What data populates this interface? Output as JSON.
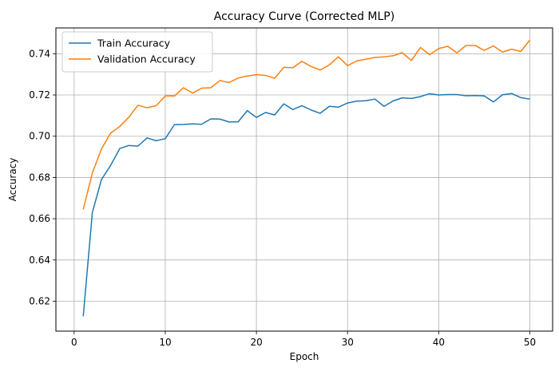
{
  "chart_data": {
    "type": "line",
    "title": "Accuracy Curve (Corrected MLP)",
    "xlabel": "Epoch",
    "ylabel": "Accuracy",
    "xlim": [
      -2.0,
      52.5
    ],
    "ylim": [
      0.6055,
      0.7525
    ],
    "xticks": [
      0,
      10,
      20,
      30,
      40,
      50
    ],
    "yticks": [
      0.62,
      0.64,
      0.66,
      0.68,
      0.7,
      0.72,
      0.74
    ],
    "grid": true,
    "legend_position": "top-left",
    "x": [
      1,
      2,
      3,
      4,
      5,
      6,
      7,
      8,
      9,
      10,
      11,
      12,
      13,
      14,
      15,
      16,
      17,
      18,
      19,
      20,
      21,
      22,
      23,
      24,
      25,
      26,
      27,
      28,
      29,
      30,
      31,
      32,
      33,
      34,
      35,
      36,
      37,
      38,
      39,
      40,
      41,
      42,
      43,
      44,
      45,
      46,
      47,
      48,
      49,
      50
    ],
    "series": [
      {
        "name": "Train Accuracy",
        "color": "#1f77b4",
        "values": [
          0.6127,
          0.663,
          0.679,
          0.6858,
          0.694,
          0.6955,
          0.6952,
          0.6992,
          0.6978,
          0.6988,
          0.7056,
          0.7057,
          0.706,
          0.7058,
          0.7084,
          0.7083,
          0.7069,
          0.707,
          0.7124,
          0.7091,
          0.7115,
          0.7103,
          0.7157,
          0.7129,
          0.7148,
          0.7127,
          0.7111,
          0.7145,
          0.7141,
          0.7161,
          0.717,
          0.7172,
          0.718,
          0.7145,
          0.7171,
          0.7186,
          0.7183,
          0.7192,
          0.7206,
          0.72,
          0.7202,
          0.7202,
          0.7196,
          0.7197,
          0.7195,
          0.7166,
          0.7201,
          0.7207,
          0.7187,
          0.718
        ]
      },
      {
        "name": "Validation Accuracy",
        "color": "#ff7f0e",
        "values": [
          0.6645,
          0.6822,
          0.6938,
          0.7015,
          0.7047,
          0.7092,
          0.715,
          0.7138,
          0.7148,
          0.7195,
          0.7195,
          0.7235,
          0.7209,
          0.7233,
          0.7235,
          0.727,
          0.726,
          0.7282,
          0.7292,
          0.7298,
          0.7295,
          0.7281,
          0.7334,
          0.7332,
          0.7363,
          0.7338,
          0.7321,
          0.7346,
          0.7385,
          0.7342,
          0.7365,
          0.7373,
          0.7382,
          0.7385,
          0.739,
          0.7405,
          0.7367,
          0.743,
          0.7395,
          0.7425,
          0.7436,
          0.7404,
          0.744,
          0.744,
          0.7416,
          0.7438,
          0.7408,
          0.7422,
          0.7411,
          0.7466
        ]
      }
    ]
  }
}
